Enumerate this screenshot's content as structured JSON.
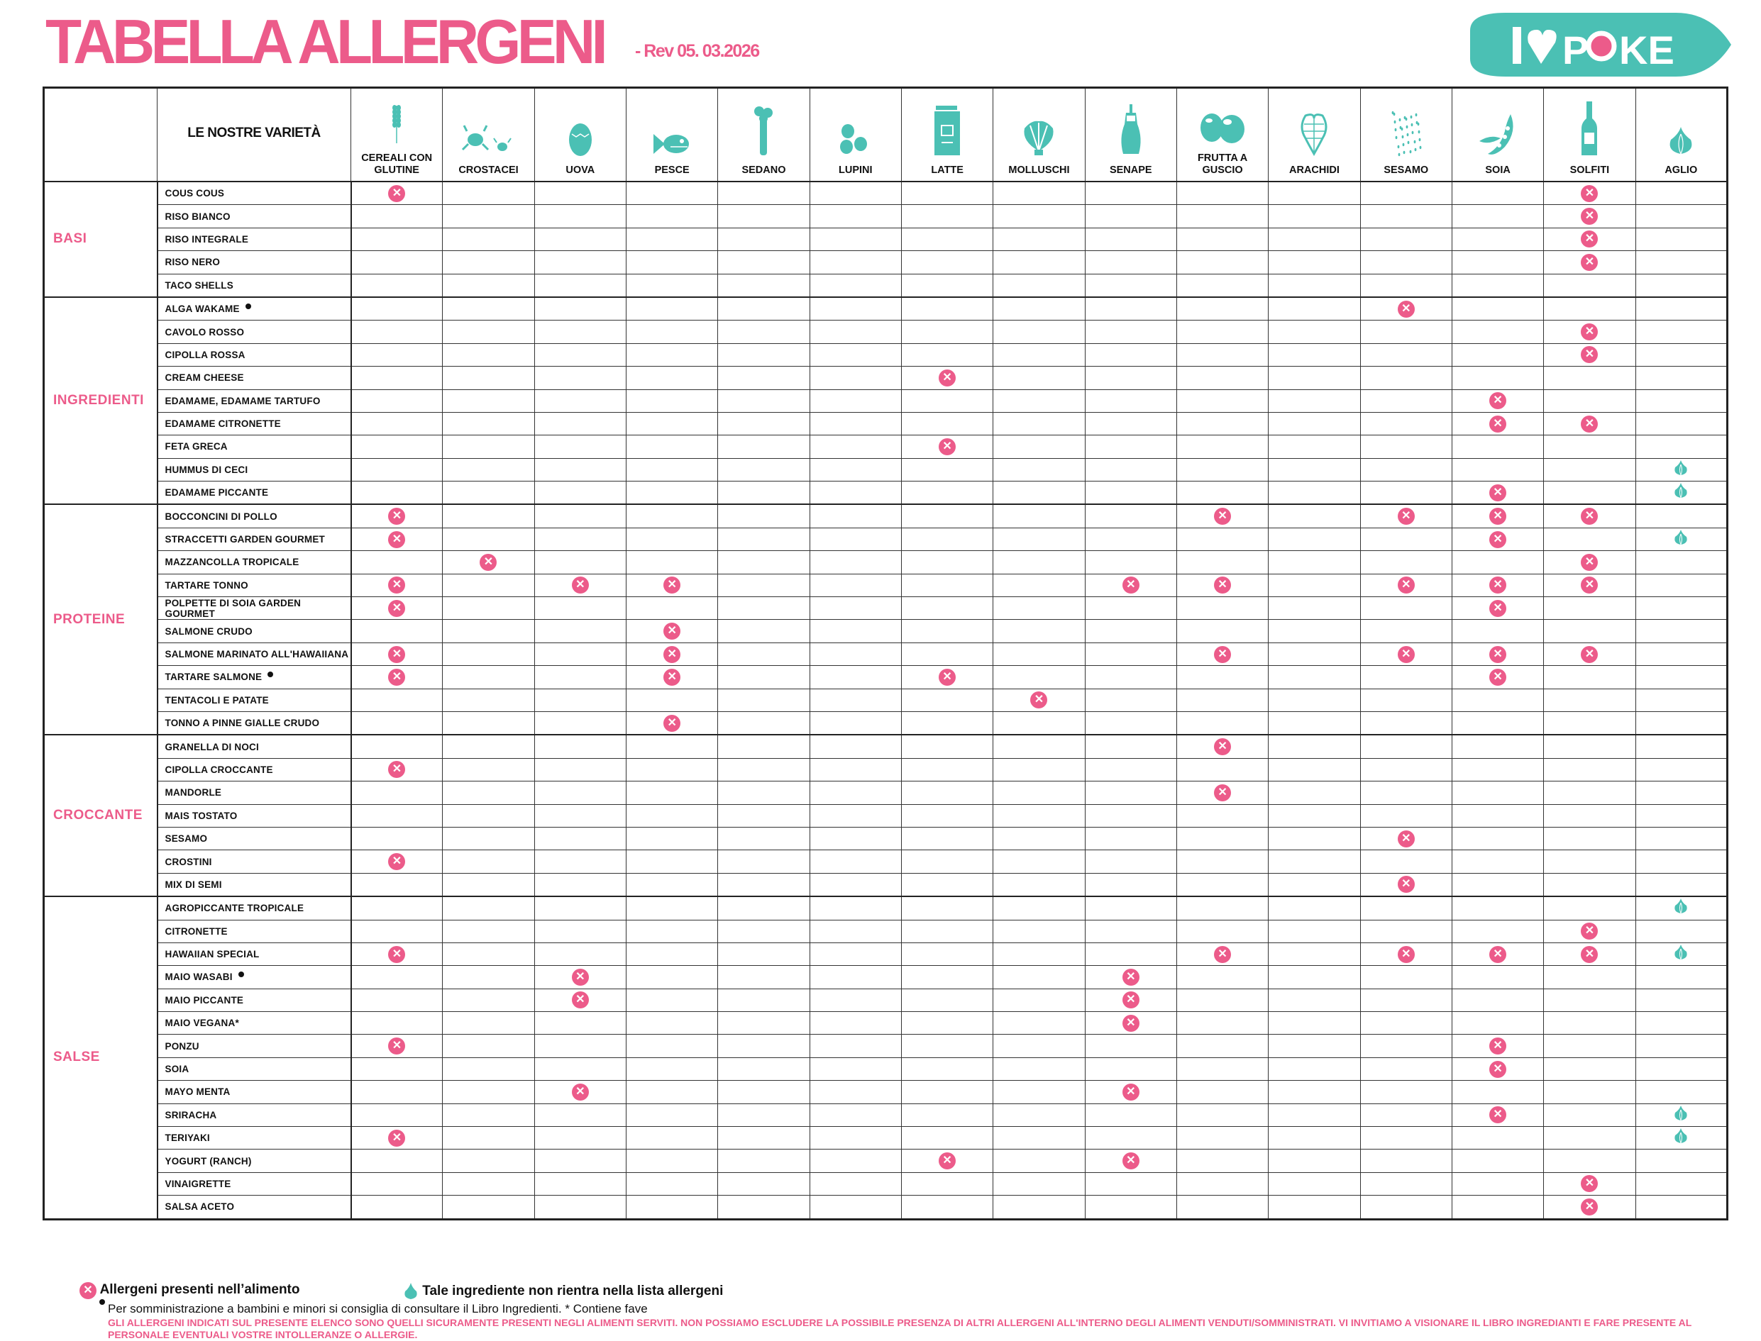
{
  "header": {
    "title": "TABELLA ALLERGENI",
    "revision": "- Rev 05. 03.2026",
    "logo_text": "I ♥ POKE"
  },
  "colors": {
    "pink": "#ec5b8a",
    "teal": "#4bc0b4"
  },
  "table": {
    "names_header": "LE NOSTRE VARIETÀ",
    "allergens": [
      {
        "key": "cereali",
        "label": "CEREALI CON GLUTINE",
        "icon": "wheat-icon"
      },
      {
        "key": "crostacei",
        "label": "CROSTACEI",
        "icon": "crab-icon"
      },
      {
        "key": "uova",
        "label": "UOVA",
        "icon": "egg-icon"
      },
      {
        "key": "pesce",
        "label": "PESCE",
        "icon": "fish-icon"
      },
      {
        "key": "sedano",
        "label": "SEDANO",
        "icon": "celery-icon"
      },
      {
        "key": "lupini",
        "label": "LUPINI",
        "icon": "lupin-icon"
      },
      {
        "key": "latte",
        "label": "LATTE",
        "icon": "milk-carton-icon"
      },
      {
        "key": "molluschi",
        "label": "MOLLUSCHI",
        "icon": "shell-icon"
      },
      {
        "key": "senape",
        "label": "SENAPE",
        "icon": "mustard-bottle-icon"
      },
      {
        "key": "frutta",
        "label": "FRUTTA A GUSCIO",
        "icon": "nuts-icon"
      },
      {
        "key": "arachidi",
        "label": "ARACHIDI",
        "icon": "peanut-icon"
      },
      {
        "key": "sesamo",
        "label": "SESAMO",
        "icon": "sesame-seeds-icon"
      },
      {
        "key": "soia",
        "label": "SOIA",
        "icon": "soy-pod-icon"
      },
      {
        "key": "solfiti",
        "label": "SOLFITI",
        "icon": "wine-bottle-icon"
      },
      {
        "key": "aglio",
        "label": "AGLIO",
        "icon": "garlic-icon"
      }
    ],
    "groups": [
      {
        "category": "BASI",
        "rows": [
          {
            "name": "COUS COUS",
            "allergens": [
              "cereali",
              "solfiti"
            ]
          },
          {
            "name": "RISO BIANCO",
            "allergens": [
              "solfiti"
            ]
          },
          {
            "name": "RISO INTEGRALE",
            "allergens": [
              "solfiti"
            ]
          },
          {
            "name": "RISO NERO",
            "allergens": [
              "solfiti"
            ]
          },
          {
            "name": "TACO SHELLS",
            "allergens": []
          }
        ]
      },
      {
        "category": "INGREDIENTI",
        "rows": [
          {
            "name": "ALGA WAKAME",
            "dot": true,
            "allergens": [
              "sesamo"
            ]
          },
          {
            "name": "CAVOLO ROSSO",
            "allergens": [
              "solfiti"
            ]
          },
          {
            "name": "CIPOLLA ROSSA",
            "allergens": [
              "solfiti"
            ]
          },
          {
            "name": "CREAM CHEESE",
            "allergens": [
              "latte"
            ]
          },
          {
            "name": "EDAMAME, EDAMAME TARTUFO",
            "allergens": [
              "soia"
            ]
          },
          {
            "name": "EDAMAME CITRONETTE",
            "allergens": [
              "soia",
              "solfiti"
            ]
          },
          {
            "name": "FETA GRECA",
            "allergens": [
              "latte"
            ]
          },
          {
            "name": "HUMMUS DI CECI",
            "allergens": [
              "aglio"
            ]
          },
          {
            "name": "EDAMAME PICCANTE",
            "allergens": [
              "soia",
              "aglio"
            ]
          }
        ]
      },
      {
        "category": "PROTEINE",
        "rows": [
          {
            "name": "BOCCONCINI DI POLLO",
            "allergens": [
              "cereali",
              "frutta",
              "sesamo",
              "soia",
              "solfiti"
            ]
          },
          {
            "name": "STRACCETTI  GARDEN GOURMET",
            "allergens": [
              "cereali",
              "soia",
              "aglio"
            ]
          },
          {
            "name": "MAZZANCOLLA TROPICALE",
            "allergens": [
              "crostacei",
              "solfiti"
            ]
          },
          {
            "name": "TARTARE TONNO",
            "allergens": [
              "cereali",
              "uova",
              "pesce",
              "senape",
              "frutta",
              "sesamo",
              "soia",
              "solfiti"
            ]
          },
          {
            "name": "POLPETTE DI SOIA GARDEN GOURMET",
            "allergens": [
              "cereali",
              "soia"
            ]
          },
          {
            "name": "SALMONE CRUDO",
            "allergens": [
              "pesce"
            ]
          },
          {
            "name": "SALMONE MARINATO ALL'HAWAIIANA",
            "allergens": [
              "cereali",
              "pesce",
              "frutta",
              "sesamo",
              "soia",
              "solfiti"
            ]
          },
          {
            "name": "TARTARE SALMONE",
            "dot": true,
            "allergens": [
              "cereali",
              "pesce",
              "latte",
              "soia"
            ]
          },
          {
            "name": "TENTACOLI E PATATE",
            "allergens": [
              "molluschi"
            ]
          },
          {
            "name": "TONNO A PINNE GIALLE CRUDO",
            "allergens": [
              "pesce"
            ]
          }
        ]
      },
      {
        "category": "CROCCANTE",
        "rows": [
          {
            "name": "GRANELLA DI NOCI",
            "allergens": [
              "frutta"
            ]
          },
          {
            "name": "CIPOLLA CROCCANTE",
            "allergens": [
              "cereali"
            ]
          },
          {
            "name": "MANDORLE",
            "allergens": [
              "frutta"
            ]
          },
          {
            "name": "MAIS TOSTATO",
            "allergens": []
          },
          {
            "name": "SESAMO",
            "allergens": [
              "sesamo"
            ]
          },
          {
            "name": "CROSTINI",
            "allergens": [
              "cereali"
            ]
          },
          {
            "name": "MIX DI SEMI",
            "allergens": [
              "sesamo"
            ]
          }
        ]
      },
      {
        "category": "SALSE",
        "rows": [
          {
            "name": "AGROPICCANTE TROPICALE",
            "allergens": [
              "aglio"
            ]
          },
          {
            "name": "CITRONETTE",
            "allergens": [
              "solfiti"
            ]
          },
          {
            "name": "HAWAIIAN SPECIAL",
            "allergens": [
              "cereali",
              "frutta",
              "sesamo",
              "soia",
              "solfiti",
              "aglio"
            ]
          },
          {
            "name": "MAIO WASABI",
            "dot": true,
            "allergens": [
              "uova",
              "senape"
            ]
          },
          {
            "name": "MAIO PICCANTE",
            "allergens": [
              "uova",
              "senape"
            ]
          },
          {
            "name": "MAIO VEGANA*",
            "allergens": [
              "senape"
            ]
          },
          {
            "name": "PONZU",
            "allergens": [
              "cereali",
              "soia"
            ]
          },
          {
            "name": "SOIA",
            "allergens": [
              "soia"
            ]
          },
          {
            "name": "MAYO MENTA",
            "allergens": [
              "uova",
              "senape"
            ]
          },
          {
            "name": "SRIRACHA",
            "allergens": [
              "soia",
              "aglio"
            ]
          },
          {
            "name": "TERIYAKI",
            "allergens": [
              "cereali",
              "aglio"
            ]
          },
          {
            "name": "YOGURT (RANCH)",
            "allergens": [
              "latte",
              "senape"
            ]
          },
          {
            "name": "VINAIGRETTE",
            "allergens": [
              "solfiti"
            ]
          },
          {
            "name": "SALSA ACETO",
            "allergens": [
              "solfiti"
            ]
          }
        ]
      }
    ]
  },
  "footer": {
    "legend_allergen": "Allergeni presenti nell’alimento",
    "legend_garlic": "Tale ingrediente non rientra nella lista allergeni",
    "note": "Per somministrazione a bambini e minori si consiglia di consultare il Libro Ingredienti.    * Contiene fave",
    "disclaimer": "GLI ALLERGENI INDICATI SUL PRESENTE ELENCO SONO QUELLI SICURAMENTE PRESENTI NEGLI ALIMENTI SERVITI. NON POSSIAMO ESCLUDERE LA POSSIBILE PRESENZA DI ALTRI ALLERGENI ALL'INTERNO DEGLI ALIMENTI VENDUTI/SOMMINISTRATI. VI INVITIAMO A VISIONARE IL LIBRO INGREDIANTI E FARE PRESENTE AL PERSONALE EVENTUALI VOSTRE INTOLLERANZE O ALLERGIE."
  }
}
